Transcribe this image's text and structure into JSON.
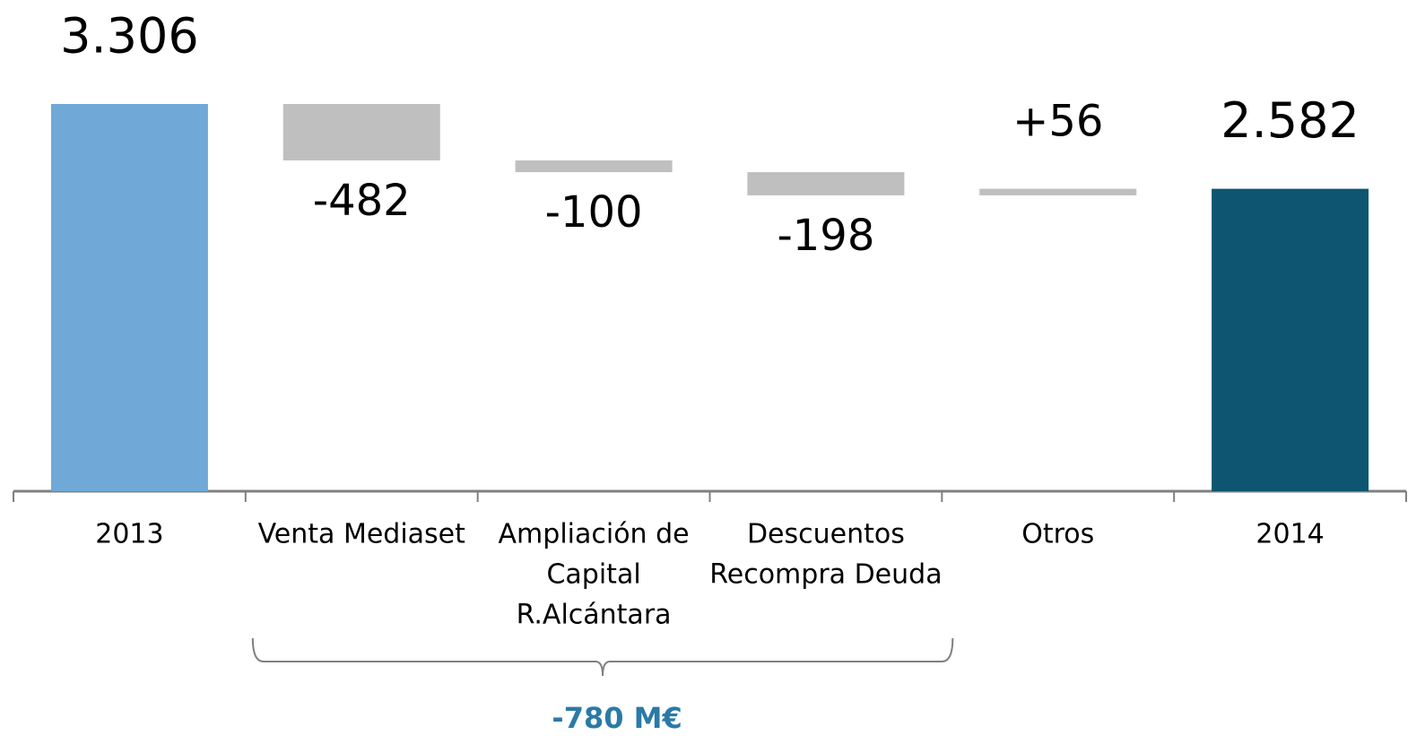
{
  "chart_data": {
    "type": "waterfall",
    "categories": [
      [
        "2013"
      ],
      [
        "Venta Mediaset"
      ],
      [
        "Ampliación de",
        "Capital",
        "R.Alcántara"
      ],
      [
        "Descuentos",
        "Recompra Deuda"
      ],
      [
        "Otros"
      ],
      [
        "2014"
      ]
    ],
    "values": [
      3306,
      -482,
      -100,
      -198,
      56,
      2582
    ],
    "value_labels": [
      "3.306",
      "-482",
      "-100",
      "-198",
      "+56",
      "2.582"
    ],
    "kinds": [
      "total",
      "delta",
      "delta",
      "delta",
      "delta",
      "total"
    ],
    "colors": [
      "#70a9d7",
      "#bfbfbf",
      "#bfbfbf",
      "#bfbfbf",
      "#bfbfbf",
      "#0d5570"
    ],
    "ylim": [
      0,
      3306
    ],
    "annotation": {
      "text": "-780 M€",
      "from": 1,
      "to": 3,
      "color": "#2b7aa6"
    }
  }
}
